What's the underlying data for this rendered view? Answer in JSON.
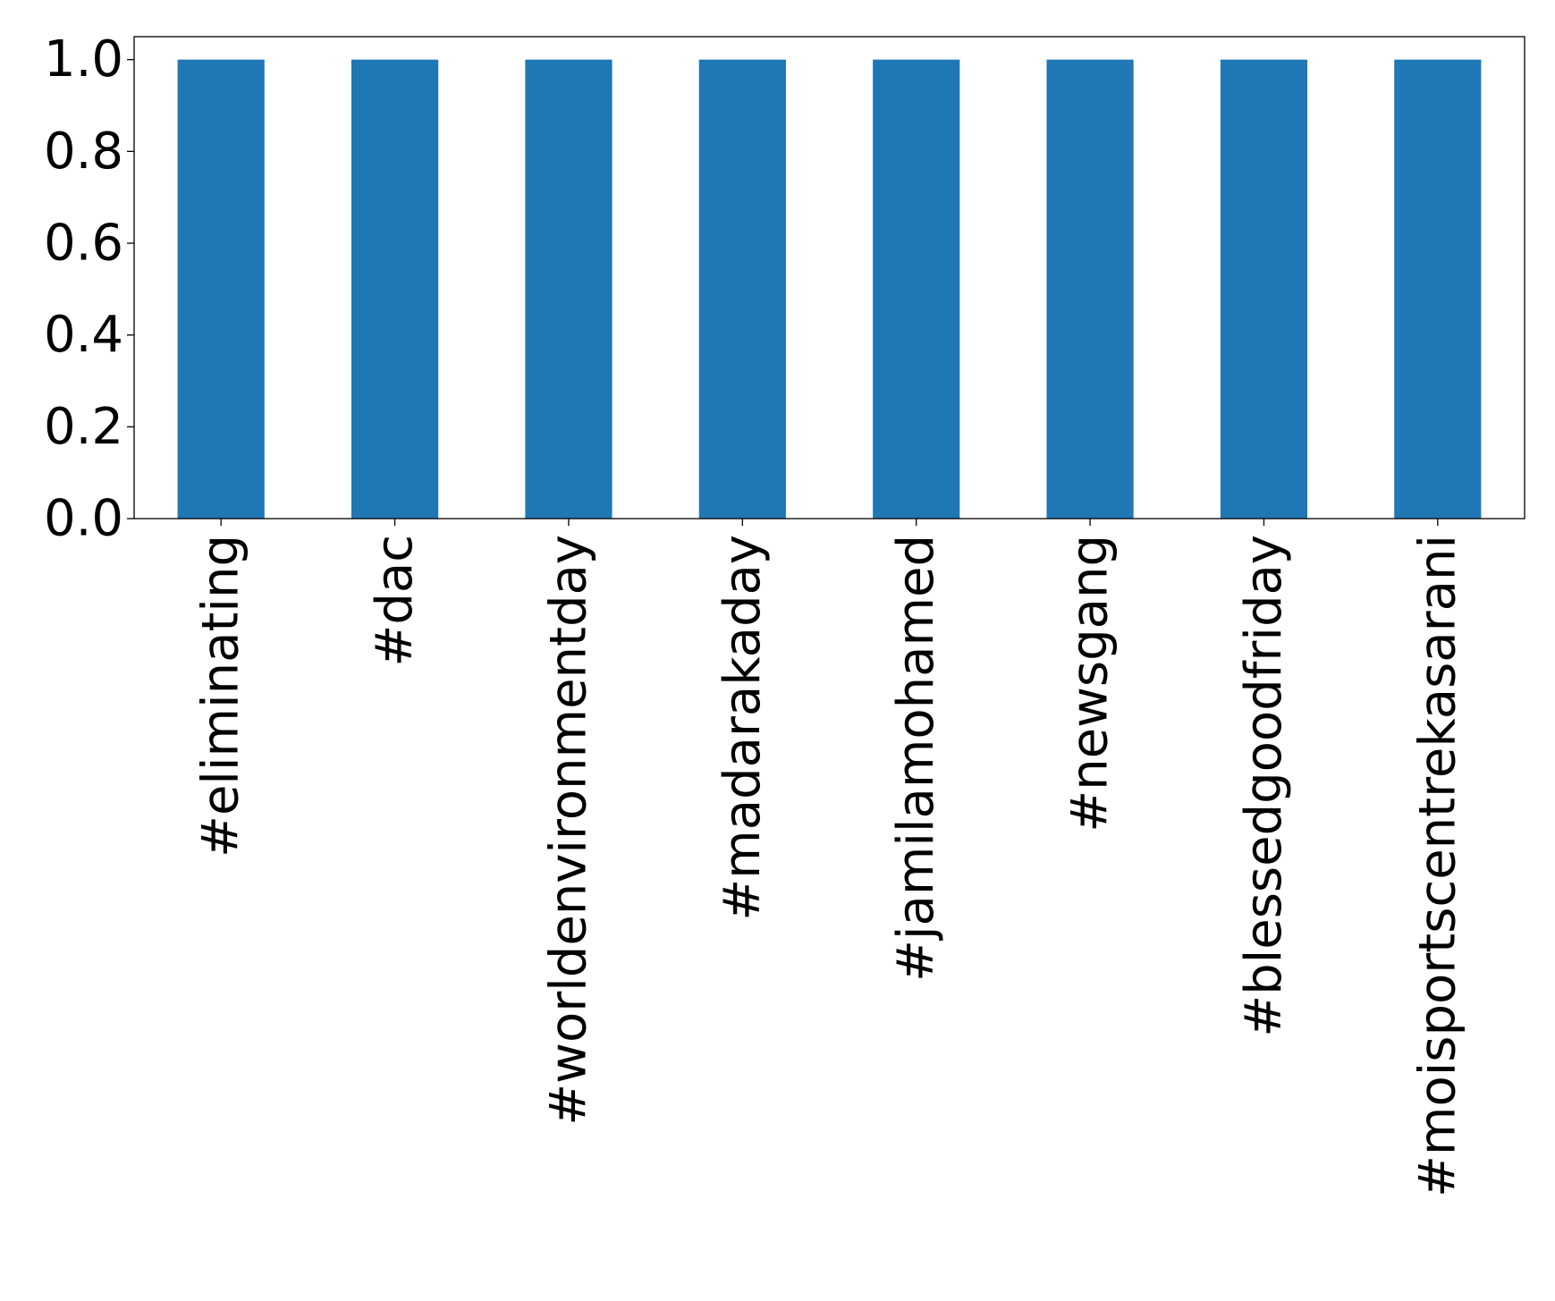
{
  "chart_data": {
    "type": "bar",
    "categories": [
      "#eliminating",
      "#dac",
      "#worldenvironmentday",
      "#madarakaday",
      "#jamilamohamed",
      "#newsgang",
      "#blessedgoodfriday",
      "#moisportscentrekasarani"
    ],
    "values": [
      1,
      1,
      1,
      1,
      1,
      1,
      1,
      1
    ],
    "ylim": [
      0,
      1.05
    ],
    "yticks": [
      "0.0",
      "0.2",
      "0.4",
      "0.6",
      "0.8",
      "1.0"
    ],
    "title": "",
    "xlabel": "",
    "ylabel": "",
    "bar_color": "#1f77b4",
    "grid": false
  }
}
